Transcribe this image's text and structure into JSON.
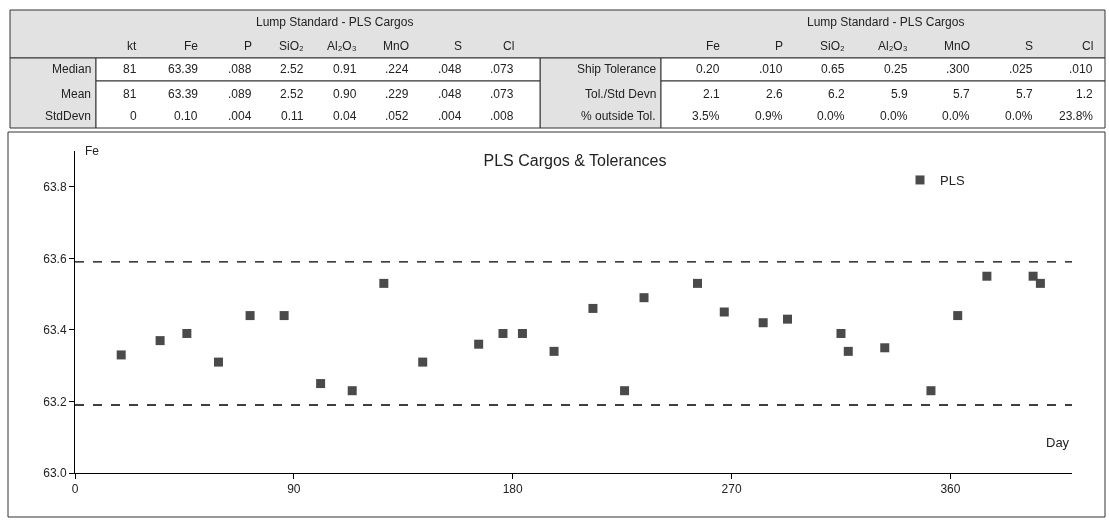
{
  "chart_data": {
    "type": "scatter",
    "title": "PLS Cargos & Tolerances",
    "xlabel": "Day",
    "ylabel": "Fe",
    "x": [
      19,
      35,
      46,
      59,
      72,
      86,
      101,
      114,
      127,
      143,
      166,
      176,
      184,
      197,
      213,
      226,
      234,
      256,
      267,
      283,
      293,
      315,
      318,
      333,
      352,
      363,
      375,
      394,
      397
    ],
    "series": [
      {
        "name": "PLS",
        "color": "#4a4a4a",
        "values": [
          63.33,
          63.37,
          63.39,
          63.31,
          63.44,
          63.44,
          63.25,
          63.23,
          63.53,
          63.31,
          63.36,
          63.39,
          63.39,
          63.34,
          63.46,
          63.23,
          63.49,
          63.53,
          63.45,
          63.42,
          63.43,
          63.39,
          63.34,
          63.35,
          63.23,
          63.44,
          63.55,
          63.55,
          63.53
        ]
      }
    ],
    "xlim": [
      0,
      410
    ],
    "xticks": [
      0,
      90,
      180,
      270,
      360
    ],
    "ylim": [
      63.0,
      63.9
    ],
    "yticks": [
      {
        "value": 63.0,
        "label": "63.0"
      },
      {
        "value": 63.2,
        "label": "63.2"
      },
      {
        "value": 63.4,
        "label": "63.4"
      },
      {
        "value": 63.6,
        "label": "63.6"
      },
      {
        "value": 63.8,
        "label": "63.8"
      }
    ],
    "ref_lines": [
      {
        "axis": "y",
        "value": 63.59,
        "color": "#000000",
        "line_style": "dashed"
      },
      {
        "axis": "y",
        "value": 63.19,
        "color": "#000000",
        "line_style": "dashed"
      }
    ],
    "marker": "square",
    "legend": "top right",
    "annotations": [
      "Lump Standard - PLS Cargos",
      "kt",
      "Fe",
      "P",
      "SiO₂",
      "Al₂O₃",
      "MnO",
      "S",
      "Cl",
      "Median",
      "81",
      "63.39",
      ".088",
      "2.52",
      "0.91",
      ".224",
      ".048",
      ".073",
      "Mean",
      "81",
      "63.39",
      ".089",
      "2.52",
      "0.90",
      ".229",
      ".048",
      ".073",
      "StdDevn",
      "0",
      "0.10",
      ".004",
      "0.11",
      "0.04",
      ".052",
      ".004",
      ".008",
      "Lump Standard - PLS Cargos",
      "Fe",
      "P",
      "SiO₂",
      "Al₂O₃",
      "MnO",
      "S",
      "Cl",
      "Ship Tolerance",
      "0.20",
      ".010",
      "0.65",
      "0.25",
      ".300",
      ".025",
      ".010",
      "Tol./Std Devn",
      "2.1",
      "2.6",
      "6.2",
      "5.9",
      "5.7",
      "5.7",
      "1.2",
      "% outside Tol.",
      "3.5%",
      "0.9%",
      "0.0%",
      "0.0%",
      "0.0%",
      "0.0%",
      "23.8%"
    ]
  }
}
